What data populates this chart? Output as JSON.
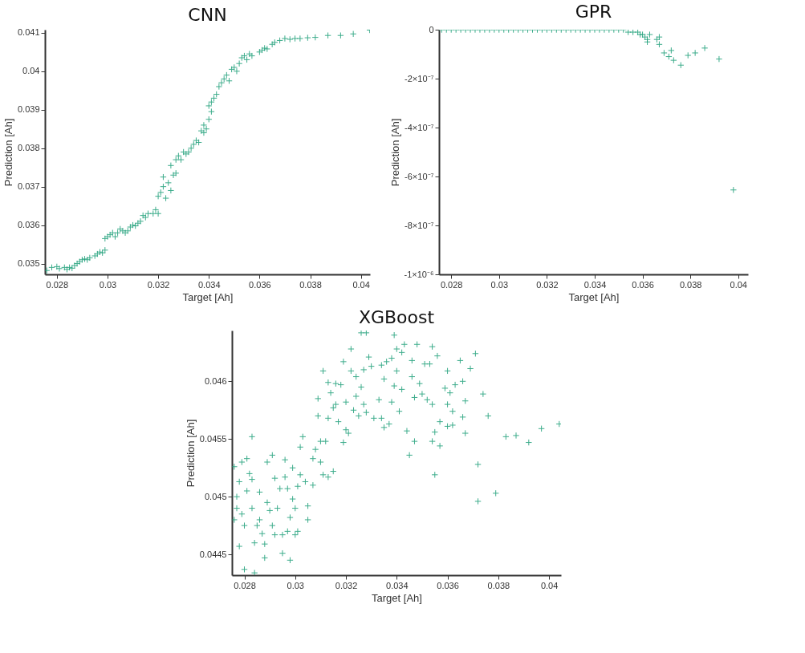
{
  "chart_data": [
    {
      "type": "scatter",
      "title": "CNN",
      "xlabel": "Target [Ah]",
      "ylabel": "Prediction [Ah]",
      "marker": "cross",
      "xlim": [
        0.02753,
        0.04036
      ],
      "ylim": [
        0.03472,
        0.04108
      ],
      "xticks": [
        0.028,
        0.03,
        0.032,
        0.034,
        0.036,
        0.038,
        0.04
      ],
      "yticks": [
        0.035,
        0.036,
        0.037,
        0.038,
        0.039,
        0.04,
        0.041
      ],
      "x": [
        0.0276,
        0.0278,
        0.028,
        0.0281,
        0.0283,
        0.0284,
        0.0285,
        0.0286,
        0.0287,
        0.0288,
        0.0289,
        0.029,
        0.0291,
        0.0292,
        0.0293,
        0.0295,
        0.0296,
        0.0297,
        0.0298,
        0.0299,
        0.0299,
        0.03,
        0.0301,
        0.0302,
        0.0303,
        0.0304,
        0.0305,
        0.0306,
        0.0307,
        0.0308,
        0.0309,
        0.031,
        0.0311,
        0.0312,
        0.0313,
        0.0314,
        0.0315,
        0.0316,
        0.0318,
        0.0319,
        0.032,
        0.032,
        0.0321,
        0.0322,
        0.0322,
        0.0323,
        0.0324,
        0.0325,
        0.0325,
        0.0326,
        0.0327,
        0.0327,
        0.0328,
        0.0329,
        0.033,
        0.0331,
        0.0332,
        0.0333,
        0.0334,
        0.0335,
        0.0336,
        0.0337,
        0.0338,
        0.0338,
        0.0339,
        0.034,
        0.034,
        0.0341,
        0.0341,
        0.0342,
        0.0343,
        0.0344,
        0.0345,
        0.0346,
        0.0347,
        0.0348,
        0.0349,
        0.035,
        0.0351,
        0.0352,
        0.0353,
        0.0354,
        0.0355,
        0.0356,
        0.0357,
        0.036,
        0.0361,
        0.0362,
        0.0363,
        0.0365,
        0.0366,
        0.0368,
        0.037,
        0.0372,
        0.0374,
        0.0376,
        0.0379,
        0.0382,
        0.0387,
        0.0392,
        0.0397,
        0.04035
      ],
      "series": [
        {
          "color": "#1b9e77",
          "values": [
            0.03482,
            0.0349,
            0.03492,
            0.03487,
            0.0349,
            0.03485,
            0.0349,
            0.03488,
            0.03495,
            0.035,
            0.03505,
            0.0351,
            0.03512,
            0.0351,
            0.03515,
            0.0352,
            0.03525,
            0.0353,
            0.03528,
            0.03535,
            0.03565,
            0.0357,
            0.03575,
            0.0358,
            0.0357,
            0.0358,
            0.0359,
            0.03585,
            0.0358,
            0.03585,
            0.03595,
            0.036,
            0.03598,
            0.03605,
            0.0361,
            0.03625,
            0.0362,
            0.0363,
            0.0363,
            0.0364,
            0.0363,
            0.03675,
            0.03685,
            0.037,
            0.03725,
            0.0367,
            0.0371,
            0.0369,
            0.03755,
            0.0373,
            0.0377,
            0.03735,
            0.0378,
            0.0377,
            0.0379,
            0.03785,
            0.0379,
            0.038,
            0.0381,
            0.0382,
            0.03815,
            0.03845,
            0.0386,
            0.0384,
            0.0385,
            0.03875,
            0.0391,
            0.0392,
            0.03895,
            0.0393,
            0.0394,
            0.0396,
            0.0397,
            0.0398,
            0.0399,
            0.03975,
            0.04005,
            0.0401,
            0.04,
            0.0402,
            0.04035,
            0.0404,
            0.0403,
            0.04045,
            0.0404,
            0.0405,
            0.04055,
            0.0406,
            0.04058,
            0.0407,
            0.04075,
            0.0408,
            0.04085,
            0.04083,
            0.04085,
            0.04085,
            0.04087,
            0.04088,
            0.04093,
            0.04093,
            0.04097,
            0.04107
          ]
        }
      ]
    },
    {
      "type": "scatter",
      "title": "GPR",
      "xlabel": "Target [Ah]",
      "ylabel": "Prediction [Ah]",
      "marker": "cross",
      "xlim": [
        0.02749,
        0.04041
      ],
      "ylim": [
        -1e-06,
        0
      ],
      "xticks": [
        0.028,
        0.03,
        0.032,
        0.034,
        0.036,
        0.038,
        0.04
      ],
      "yticks": [
        {
          "value": -1e-06,
          "label": "-1×10⁻⁶"
        },
        {
          "value": -8e-07,
          "label": "-8×10⁻⁷"
        },
        {
          "value": -6e-07,
          "label": "-6×10⁻⁷"
        },
        {
          "value": -4e-07,
          "label": "-4×10⁻⁷"
        },
        {
          "value": -2e-07,
          "label": "-2×10⁻⁷"
        },
        0
      ],
      "x": [
        0.0276,
        0.0278,
        0.028,
        0.0282,
        0.0284,
        0.0286,
        0.0288,
        0.029,
        0.0292,
        0.0294,
        0.0296,
        0.0298,
        0.03,
        0.0302,
        0.0304,
        0.0306,
        0.0308,
        0.031,
        0.0312,
        0.0314,
        0.0316,
        0.0318,
        0.032,
        0.0322,
        0.0324,
        0.0326,
        0.0328,
        0.033,
        0.0332,
        0.0334,
        0.0336,
        0.0338,
        0.034,
        0.0342,
        0.0344,
        0.0346,
        0.0348,
        0.035,
        0.0352,
        0.0354,
        0.0356,
        0.0358,
        0.0359,
        0.036,
        0.0361,
        0.0362,
        0.0363,
        0.0362,
        0.0366,
        0.0367,
        0.0367,
        0.0369,
        0.0371,
        0.0372,
        0.0373,
        0.0376,
        0.0379,
        0.0382,
        0.0386,
        0.0392,
        0.0398
      ],
      "series": [
        {
          "color": "#1b9e77",
          "values": [
            0,
            0,
            0,
            0,
            0,
            0,
            0,
            0,
            0,
            0,
            0,
            0,
            0,
            0,
            0,
            0,
            0,
            0,
            0,
            0,
            0,
            0,
            0,
            0,
            0,
            0,
            0,
            0,
            0,
            0,
            0,
            0,
            0,
            0,
            0,
            0,
            0,
            0,
            0,
            -1e-08,
            -1e-08,
            -1e-08,
            -2e-08,
            -2e-08,
            -3e-08,
            -4e-08,
            -2e-08,
            -5e-08,
            -4e-08,
            -6e-08,
            -3e-08,
            -9.5e-08,
            -1.1e-07,
            -8.5e-08,
            -1.25e-07,
            -1.45e-07,
            -1.05e-07,
            -9.5e-08,
            -7.5e-08,
            -1.2e-07,
            -6.55e-07
          ]
        }
      ]
    },
    {
      "type": "scatter",
      "title": "XGBoost",
      "xlabel": "Target [Ah]",
      "ylabel": "Prediction [Ah]",
      "marker": "cross",
      "xlim": [
        0.02751,
        0.04047
      ],
      "ylim": [
        0.04432,
        0.04644
      ],
      "xticks": [
        0.028,
        0.03,
        0.032,
        0.034,
        0.036,
        0.038,
        0.04
      ],
      "yticks": [
        0.0445,
        0.045,
        0.0455,
        0.046
      ],
      "x": [
        0.0276,
        0.0277,
        0.0276,
        0.0277,
        0.0278,
        0.0278,
        0.0279,
        0.0279,
        0.028,
        0.028,
        0.0281,
        0.0281,
        0.0282,
        0.0283,
        0.0283,
        0.0283,
        0.0284,
        0.0284,
        0.0285,
        0.0286,
        0.0286,
        0.0287,
        0.0288,
        0.0288,
        0.0289,
        0.0289,
        0.029,
        0.0291,
        0.0291,
        0.0292,
        0.0292,
        0.0293,
        0.0294,
        0.0295,
        0.0295,
        0.0296,
        0.0296,
        0.0297,
        0.0297,
        0.0298,
        0.0298,
        0.0299,
        0.0299,
        0.03,
        0.03,
        0.0301,
        0.0301,
        0.0302,
        0.0302,
        0.0303,
        0.0304,
        0.0305,
        0.0305,
        0.0307,
        0.0307,
        0.0308,
        0.0309,
        0.0309,
        0.031,
        0.031,
        0.0311,
        0.0311,
        0.0312,
        0.0313,
        0.0313,
        0.0313,
        0.0314,
        0.0315,
        0.0315,
        0.0316,
        0.0316,
        0.0317,
        0.0318,
        0.0319,
        0.0319,
        0.032,
        0.032,
        0.0321,
        0.0322,
        0.0322,
        0.0323,
        0.0324,
        0.0324,
        0.0325,
        0.0326,
        0.0326,
        0.0327,
        0.0327,
        0.0328,
        0.0328,
        0.0329,
        0.033,
        0.0331,
        0.0333,
        0.0334,
        0.0334,
        0.0335,
        0.0335,
        0.0336,
        0.0337,
        0.0338,
        0.0338,
        0.0339,
        0.0339,
        0.034,
        0.034,
        0.0341,
        0.0342,
        0.0342,
        0.0343,
        0.0344,
        0.0345,
        0.0346,
        0.0346,
        0.0347,
        0.0347,
        0.0348,
        0.0349,
        0.035,
        0.0351,
        0.0352,
        0.0353,
        0.0354,
        0.0354,
        0.0354,
        0.0355,
        0.0355,
        0.0356,
        0.0357,
        0.0357,
        0.0359,
        0.036,
        0.036,
        0.036,
        0.0361,
        0.0362,
        0.0362,
        0.0363,
        0.0365,
        0.0366,
        0.0366,
        0.0367,
        0.0367,
        0.0369,
        0.0371,
        0.0372,
        0.0372,
        0.0374,
        0.0376,
        0.0379,
        0.0383,
        0.0387,
        0.0392,
        0.0397,
        0.0404
      ],
      "series": [
        {
          "color": "#1b9e77",
          "values": [
            0.04526,
            0.045,
            0.0448,
            0.0449,
            0.04457,
            0.04513,
            0.0453,
            0.04485,
            0.04475,
            0.04437,
            0.04505,
            0.04533,
            0.0452,
            0.0449,
            0.04552,
            0.04515,
            0.0446,
            0.04434,
            0.04475,
            0.04504,
            0.0448,
            0.04468,
            0.04459,
            0.04447,
            0.04495,
            0.0453,
            0.04488,
            0.04475,
            0.04536,
            0.04516,
            0.04467,
            0.0449,
            0.04507,
            0.04467,
            0.04451,
            0.04532,
            0.04517,
            0.0447,
            0.04507,
            0.04482,
            0.04445,
            0.04525,
            0.04498,
            0.04467,
            0.0449,
            0.04509,
            0.0447,
            0.04543,
            0.04519,
            0.04552,
            0.04513,
            0.0448,
            0.04492,
            0.0451,
            0.04533,
            0.04541,
            0.0457,
            0.04585,
            0.0453,
            0.04548,
            0.04609,
            0.04519,
            0.04548,
            0.04599,
            0.04568,
            0.04517,
            0.0459,
            0.04577,
            0.04522,
            0.04598,
            0.0458,
            0.04565,
            0.04597,
            0.04617,
            0.04547,
            0.04582,
            0.04558,
            0.04555,
            0.04609,
            0.04628,
            0.04575,
            0.04587,
            0.04604,
            0.0457,
            0.04595,
            0.04642,
            0.0461,
            0.0458,
            0.04642,
            0.04573,
            0.04621,
            0.04613,
            0.04568,
            0.04584,
            0.04614,
            0.04568,
            0.04602,
            0.0456,
            0.04617,
            0.04563,
            0.0462,
            0.04582,
            0.0464,
            0.04596,
            0.04609,
            0.04628,
            0.04574,
            0.04593,
            0.04625,
            0.04632,
            0.04557,
            0.04536,
            0.04604,
            0.04618,
            0.04548,
            0.04586,
            0.04632,
            0.04598,
            0.04589,
            0.04615,
            0.04584,
            0.04615,
            0.0458,
            0.04548,
            0.0463,
            0.04556,
            0.04519,
            0.04622,
            0.04565,
            0.04544,
            0.04594,
            0.0458,
            0.04561,
            0.04609,
            0.0459,
            0.04574,
            0.04562,
            0.04597,
            0.04618,
            0.046,
            0.04569,
            0.04583,
            0.04555,
            0.04611,
            0.04624,
            0.04528,
            0.04496,
            0.04589,
            0.0457,
            0.04503,
            0.04552,
            0.04553,
            0.04547,
            0.04559,
            0.04563
          ]
        }
      ]
    }
  ]
}
